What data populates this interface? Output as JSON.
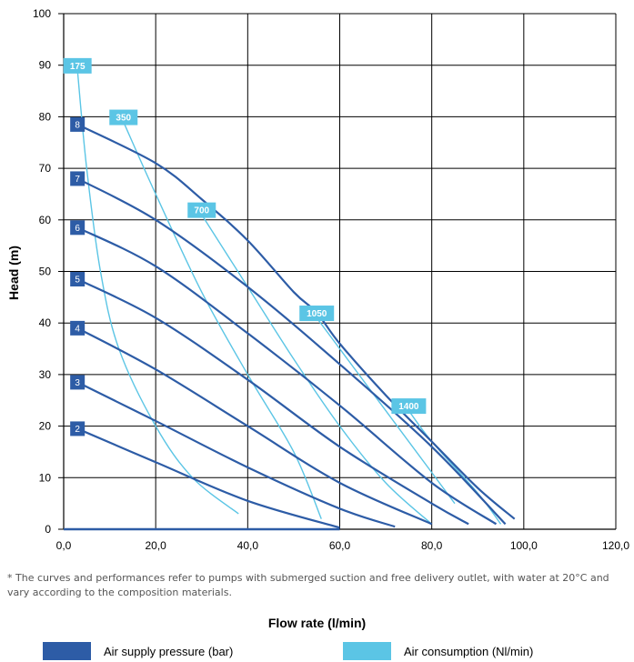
{
  "chart_data": {
    "type": "line",
    "xlabel": "Flow rate (l/min)",
    "ylabel": "Head (m)",
    "xlim": [
      0,
      120
    ],
    "ylim": [
      0,
      100
    ],
    "x_ticks": [
      "0,0",
      "20,0",
      "40,0",
      "60,0",
      "80,0",
      "100,0",
      "120,0"
    ],
    "y_ticks": [
      "0",
      "10",
      "20",
      "30",
      "40",
      "50",
      "60",
      "70",
      "80",
      "90",
      "100"
    ],
    "grid": true,
    "colors": {
      "pressure": "#2d5ca6",
      "consumption": "#5bc5e5"
    },
    "pressure_series": [
      {
        "name": "2",
        "points": [
          [
            3,
            19.5
          ],
          [
            20,
            13
          ],
          [
            40,
            5.5
          ],
          [
            60,
            0.3
          ]
        ]
      },
      {
        "name": "3",
        "points": [
          [
            3,
            28.5
          ],
          [
            20,
            21
          ],
          [
            40,
            12
          ],
          [
            60,
            4
          ],
          [
            72,
            0.5
          ]
        ]
      },
      {
        "name": "4",
        "points": [
          [
            3,
            39
          ],
          [
            20,
            31
          ],
          [
            40,
            20
          ],
          [
            60,
            9
          ],
          [
            80,
            1
          ]
        ]
      },
      {
        "name": "5",
        "points": [
          [
            3,
            48.5
          ],
          [
            20,
            41
          ],
          [
            40,
            29
          ],
          [
            60,
            16
          ],
          [
            80,
            5
          ],
          [
            88,
            1
          ]
        ]
      },
      {
        "name": "6",
        "points": [
          [
            3,
            58.5
          ],
          [
            20,
            51
          ],
          [
            40,
            38
          ],
          [
            60,
            24
          ],
          [
            80,
            9
          ],
          [
            94,
            1
          ]
        ]
      },
      {
        "name": "7",
        "points": [
          [
            3,
            68
          ],
          [
            20,
            60
          ],
          [
            40,
            47
          ],
          [
            60,
            32
          ],
          [
            80,
            16
          ],
          [
            96,
            1
          ]
        ]
      },
      {
        "name": "8",
        "points": [
          [
            3,
            78.5
          ],
          [
            20,
            71
          ],
          [
            30,
            64
          ],
          [
            40,
            56
          ],
          [
            50,
            46
          ],
          [
            55,
            42
          ],
          [
            60,
            36
          ],
          [
            70,
            26
          ],
          [
            80,
            17
          ],
          [
            90,
            8
          ],
          [
            98,
            2
          ]
        ]
      }
    ],
    "consumption_series": [
      {
        "name": "175",
        "points": [
          [
            3,
            89
          ],
          [
            5,
            70
          ],
          [
            8,
            50
          ],
          [
            12,
            35
          ],
          [
            20,
            20
          ],
          [
            28,
            10
          ],
          [
            38,
            3
          ]
        ]
      },
      {
        "name": "350",
        "points": [
          [
            13,
            79
          ],
          [
            20,
            65
          ],
          [
            30,
            46
          ],
          [
            40,
            30
          ],
          [
            50,
            15
          ],
          [
            56,
            2
          ]
        ]
      },
      {
        "name": "700",
        "points": [
          [
            30,
            61
          ],
          [
            40,
            47
          ],
          [
            50,
            33
          ],
          [
            60,
            20
          ],
          [
            70,
            9
          ],
          [
            80,
            1
          ]
        ]
      },
      {
        "name": "1050",
        "points": [
          [
            55,
            41
          ],
          [
            60,
            35
          ],
          [
            70,
            23
          ],
          [
            80,
            11
          ],
          [
            85,
            5
          ]
        ]
      },
      {
        "name": "1400",
        "points": [
          [
            75,
            23
          ],
          [
            80,
            17
          ],
          [
            90,
            7
          ],
          [
            95,
            1
          ]
        ]
      }
    ],
    "legend": [
      {
        "label": "Air supply pressure (bar)",
        "color": "#2d5ca6"
      },
      {
        "label": "Air consumption (Nl/min)",
        "color": "#5bc5e5"
      }
    ]
  },
  "footnote": "* The curves and performances refer to pumps with submerged suction and free delivery outlet, with water at 20°C and vary according to the composition materials."
}
